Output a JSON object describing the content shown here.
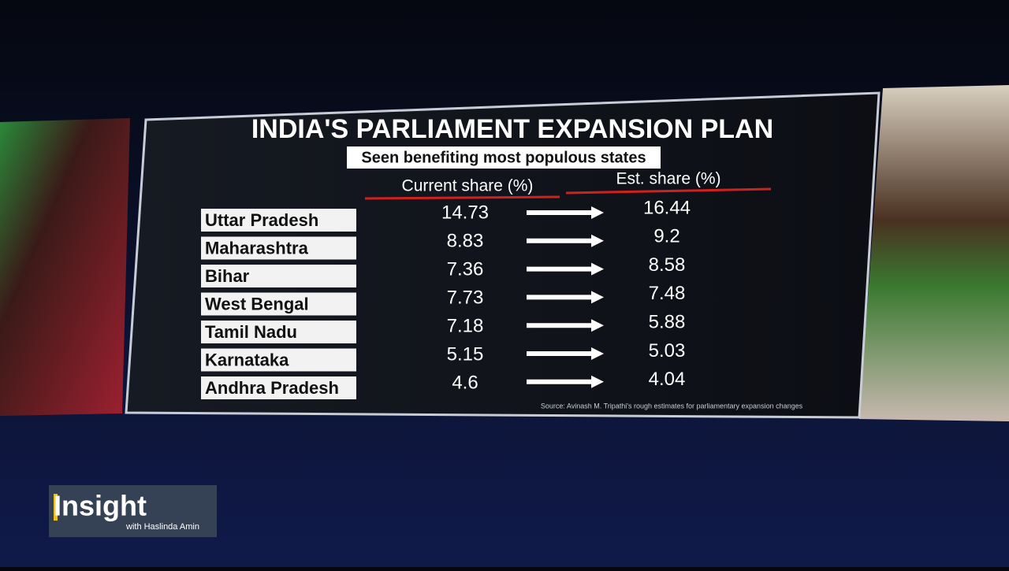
{
  "header": {
    "title": "INDIA'S PARLIAMENT EXPANSION PLAN",
    "subtitle": "Seen benefiting most populous states"
  },
  "table": {
    "columns": [
      "Current share (%)",
      "Est. share (%)"
    ],
    "rows": [
      [
        "Uttar Pradesh",
        14.73,
        16.44
      ],
      [
        "Maharashtra",
        8.83,
        9.2
      ],
      [
        "Bihar",
        7.36,
        8.58
      ],
      [
        "West Bengal",
        7.73,
        7.48
      ],
      [
        "Tamil Nadu",
        7.18,
        5.88
      ],
      [
        "Karnataka",
        5.15,
        5.03
      ],
      [
        "Andhra Pradesh",
        4.6,
        4.04
      ]
    ]
  },
  "source": "Source: Avinash M. Tripathi's rough estimates for parliamentary expansion changes",
  "show": {
    "name": "Insight",
    "host": "with Haslinda Amin"
  }
}
